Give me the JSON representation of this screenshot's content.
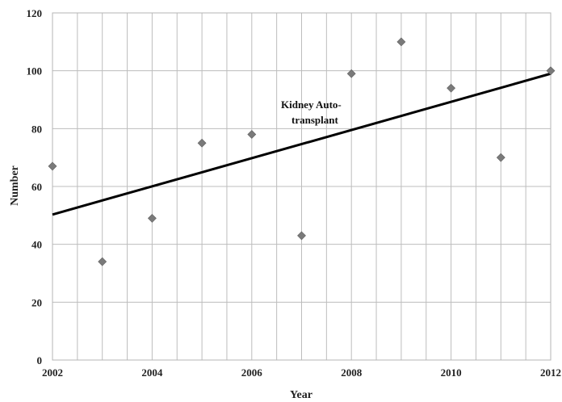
{
  "chart_data": {
    "type": "scatter",
    "title": "",
    "xlabel": "Year",
    "ylabel": "Number",
    "xlim": [
      2002,
      2012
    ],
    "ylim": [
      0,
      120
    ],
    "x_ticks": [
      "2002",
      "2004",
      "2006",
      "2008",
      "2010",
      "2012"
    ],
    "y_ticks": [
      "0",
      "20",
      "40",
      "60",
      "80",
      "100",
      "120"
    ],
    "grid": true,
    "series": [
      {
        "x": [
          2002,
          2003,
          2004,
          2005,
          2006,
          2007,
          2008,
          2009,
          2010,
          2011,
          2012
        ],
        "y": [
          67,
          34,
          49,
          75,
          78,
          43,
          99,
          110,
          94,
          70,
          100
        ],
        "marker": "diamond",
        "color": "#7a7a7a"
      }
    ],
    "trendline": {
      "type": "linear",
      "x": [
        2002,
        2012
      ],
      "y": [
        50.3,
        99
      ],
      "color": "#000000"
    },
    "annotation": {
      "line1": "Kidney Auto-",
      "line2": "transplant"
    }
  }
}
